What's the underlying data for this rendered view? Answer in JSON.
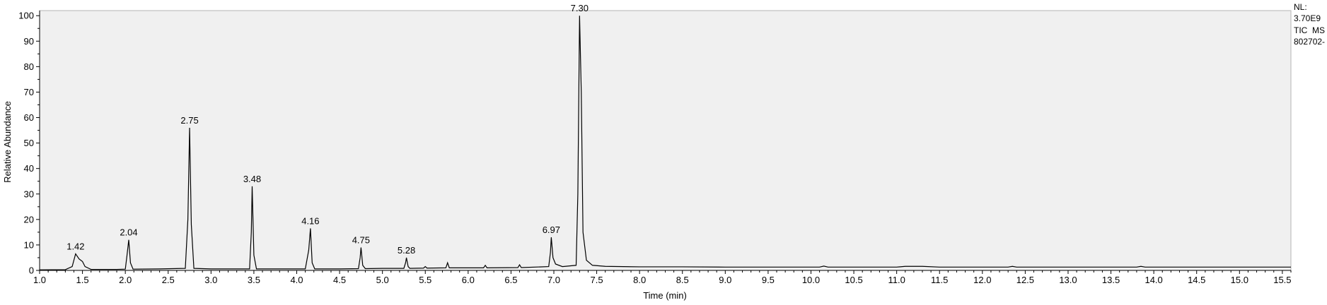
{
  "chart_data": {
    "type": "line",
    "title": "",
    "xlabel": "Time (min)",
    "ylabel": "Relative Abundance",
    "xlim": [
      1.0,
      15.6
    ],
    "ylim": [
      0,
      102
    ],
    "x_ticks": [
      "1.0",
      "1.5",
      "2.0",
      "2.5",
      "3.0",
      "3.5",
      "4.0",
      "4.5",
      "5.0",
      "5.5",
      "6.0",
      "6.5",
      "7.0",
      "7.5",
      "8.0",
      "8.5",
      "9.0",
      "9.5",
      "10.0",
      "10.5",
      "11.0",
      "11.5",
      "12.0",
      "12.5",
      "13.0",
      "13.5",
      "14.0",
      "14.5",
      "15.0",
      "15.5"
    ],
    "y_ticks": [
      "0",
      "10",
      "20",
      "30",
      "40",
      "50",
      "60",
      "70",
      "80",
      "90",
      "100"
    ],
    "plot_background": "#f0f0f0",
    "line_color": "#000000",
    "grid": false,
    "trace_info": {
      "nl_label": "NL:",
      "nl_value": "3.70E9",
      "scan_filter": "TIC  MS",
      "file_name": "802702-"
    },
    "peak_labels": [
      {
        "x": 1.42,
        "y": 6.5,
        "label": "1.42"
      },
      {
        "x": 2.04,
        "y": 12,
        "label": "2.04"
      },
      {
        "x": 2.75,
        "y": 56,
        "label": "2.75"
      },
      {
        "x": 3.48,
        "y": 33,
        "label": "3.48"
      },
      {
        "x": 4.16,
        "y": 16.5,
        "label": "4.16"
      },
      {
        "x": 4.75,
        "y": 9,
        "label": "4.75"
      },
      {
        "x": 5.28,
        "y": 5,
        "label": "5.28"
      },
      {
        "x": 6.97,
        "y": 13,
        "label": "6.97"
      },
      {
        "x": 7.3,
        "y": 100,
        "label": "7.30"
      }
    ],
    "series": [
      {
        "points": [
          [
            1.0,
            0.2
          ],
          [
            1.3,
            0.3
          ],
          [
            1.38,
            1.5
          ],
          [
            1.42,
            6.5
          ],
          [
            1.46,
            4.5
          ],
          [
            1.5,
            3.5
          ],
          [
            1.53,
            1.5
          ],
          [
            1.6,
            0.4
          ],
          [
            1.9,
            0.4
          ],
          [
            2.0,
            0.5
          ],
          [
            2.02,
            6
          ],
          [
            2.04,
            12
          ],
          [
            2.06,
            3
          ],
          [
            2.09,
            0.5
          ],
          [
            2.4,
            0.6
          ],
          [
            2.7,
            0.8
          ],
          [
            2.73,
            20
          ],
          [
            2.75,
            56
          ],
          [
            2.77,
            18
          ],
          [
            2.8,
            0.8
          ],
          [
            3.0,
            0.6
          ],
          [
            3.45,
            0.6
          ],
          [
            3.47,
            15
          ],
          [
            3.48,
            33
          ],
          [
            3.5,
            6
          ],
          [
            3.53,
            0.6
          ],
          [
            4.1,
            0.6
          ],
          [
            4.14,
            8
          ],
          [
            4.16,
            16.5
          ],
          [
            4.18,
            3
          ],
          [
            4.21,
            0.6
          ],
          [
            4.5,
            0.6
          ],
          [
            4.72,
            0.7
          ],
          [
            4.74,
            5
          ],
          [
            4.75,
            9
          ],
          [
            4.77,
            2
          ],
          [
            4.8,
            0.7
          ],
          [
            5.0,
            0.8
          ],
          [
            5.25,
            0.8
          ],
          [
            5.27,
            3
          ],
          [
            5.28,
            5
          ],
          [
            5.3,
            1.5
          ],
          [
            5.32,
            0.8
          ],
          [
            5.48,
            0.9
          ],
          [
            5.5,
            1.5
          ],
          [
            5.52,
            0.9
          ],
          [
            5.74,
            1
          ],
          [
            5.76,
            3
          ],
          [
            5.78,
            1
          ],
          [
            5.9,
            1
          ],
          [
            6.18,
            1
          ],
          [
            6.2,
            2
          ],
          [
            6.22,
            1
          ],
          [
            6.58,
            1.1
          ],
          [
            6.6,
            2.2
          ],
          [
            6.62,
            1.1
          ],
          [
            6.94,
            1.5
          ],
          [
            6.96,
            7
          ],
          [
            6.97,
            13
          ],
          [
            6.99,
            5
          ],
          [
            7.02,
            2.5
          ],
          [
            7.1,
            1.5
          ],
          [
            7.26,
            2
          ],
          [
            7.28,
            30
          ],
          [
            7.3,
            100
          ],
          [
            7.32,
            70
          ],
          [
            7.34,
            15
          ],
          [
            7.38,
            4
          ],
          [
            7.45,
            2
          ],
          [
            7.6,
            1.6
          ],
          [
            8.0,
            1.4
          ],
          [
            8.5,
            1.4
          ],
          [
            9.0,
            1.3
          ],
          [
            9.5,
            1.3
          ],
          [
            10.1,
            1.3
          ],
          [
            10.15,
            1.7
          ],
          [
            10.2,
            1.3
          ],
          [
            11.0,
            1.3
          ],
          [
            11.1,
            1.6
          ],
          [
            11.3,
            1.6
          ],
          [
            11.5,
            1.3
          ],
          [
            12.3,
            1.3
          ],
          [
            12.35,
            1.6
          ],
          [
            12.4,
            1.3
          ],
          [
            13.8,
            1.3
          ],
          [
            13.85,
            1.6
          ],
          [
            13.9,
            1.3
          ],
          [
            15.6,
            1.3
          ]
        ]
      }
    ]
  }
}
